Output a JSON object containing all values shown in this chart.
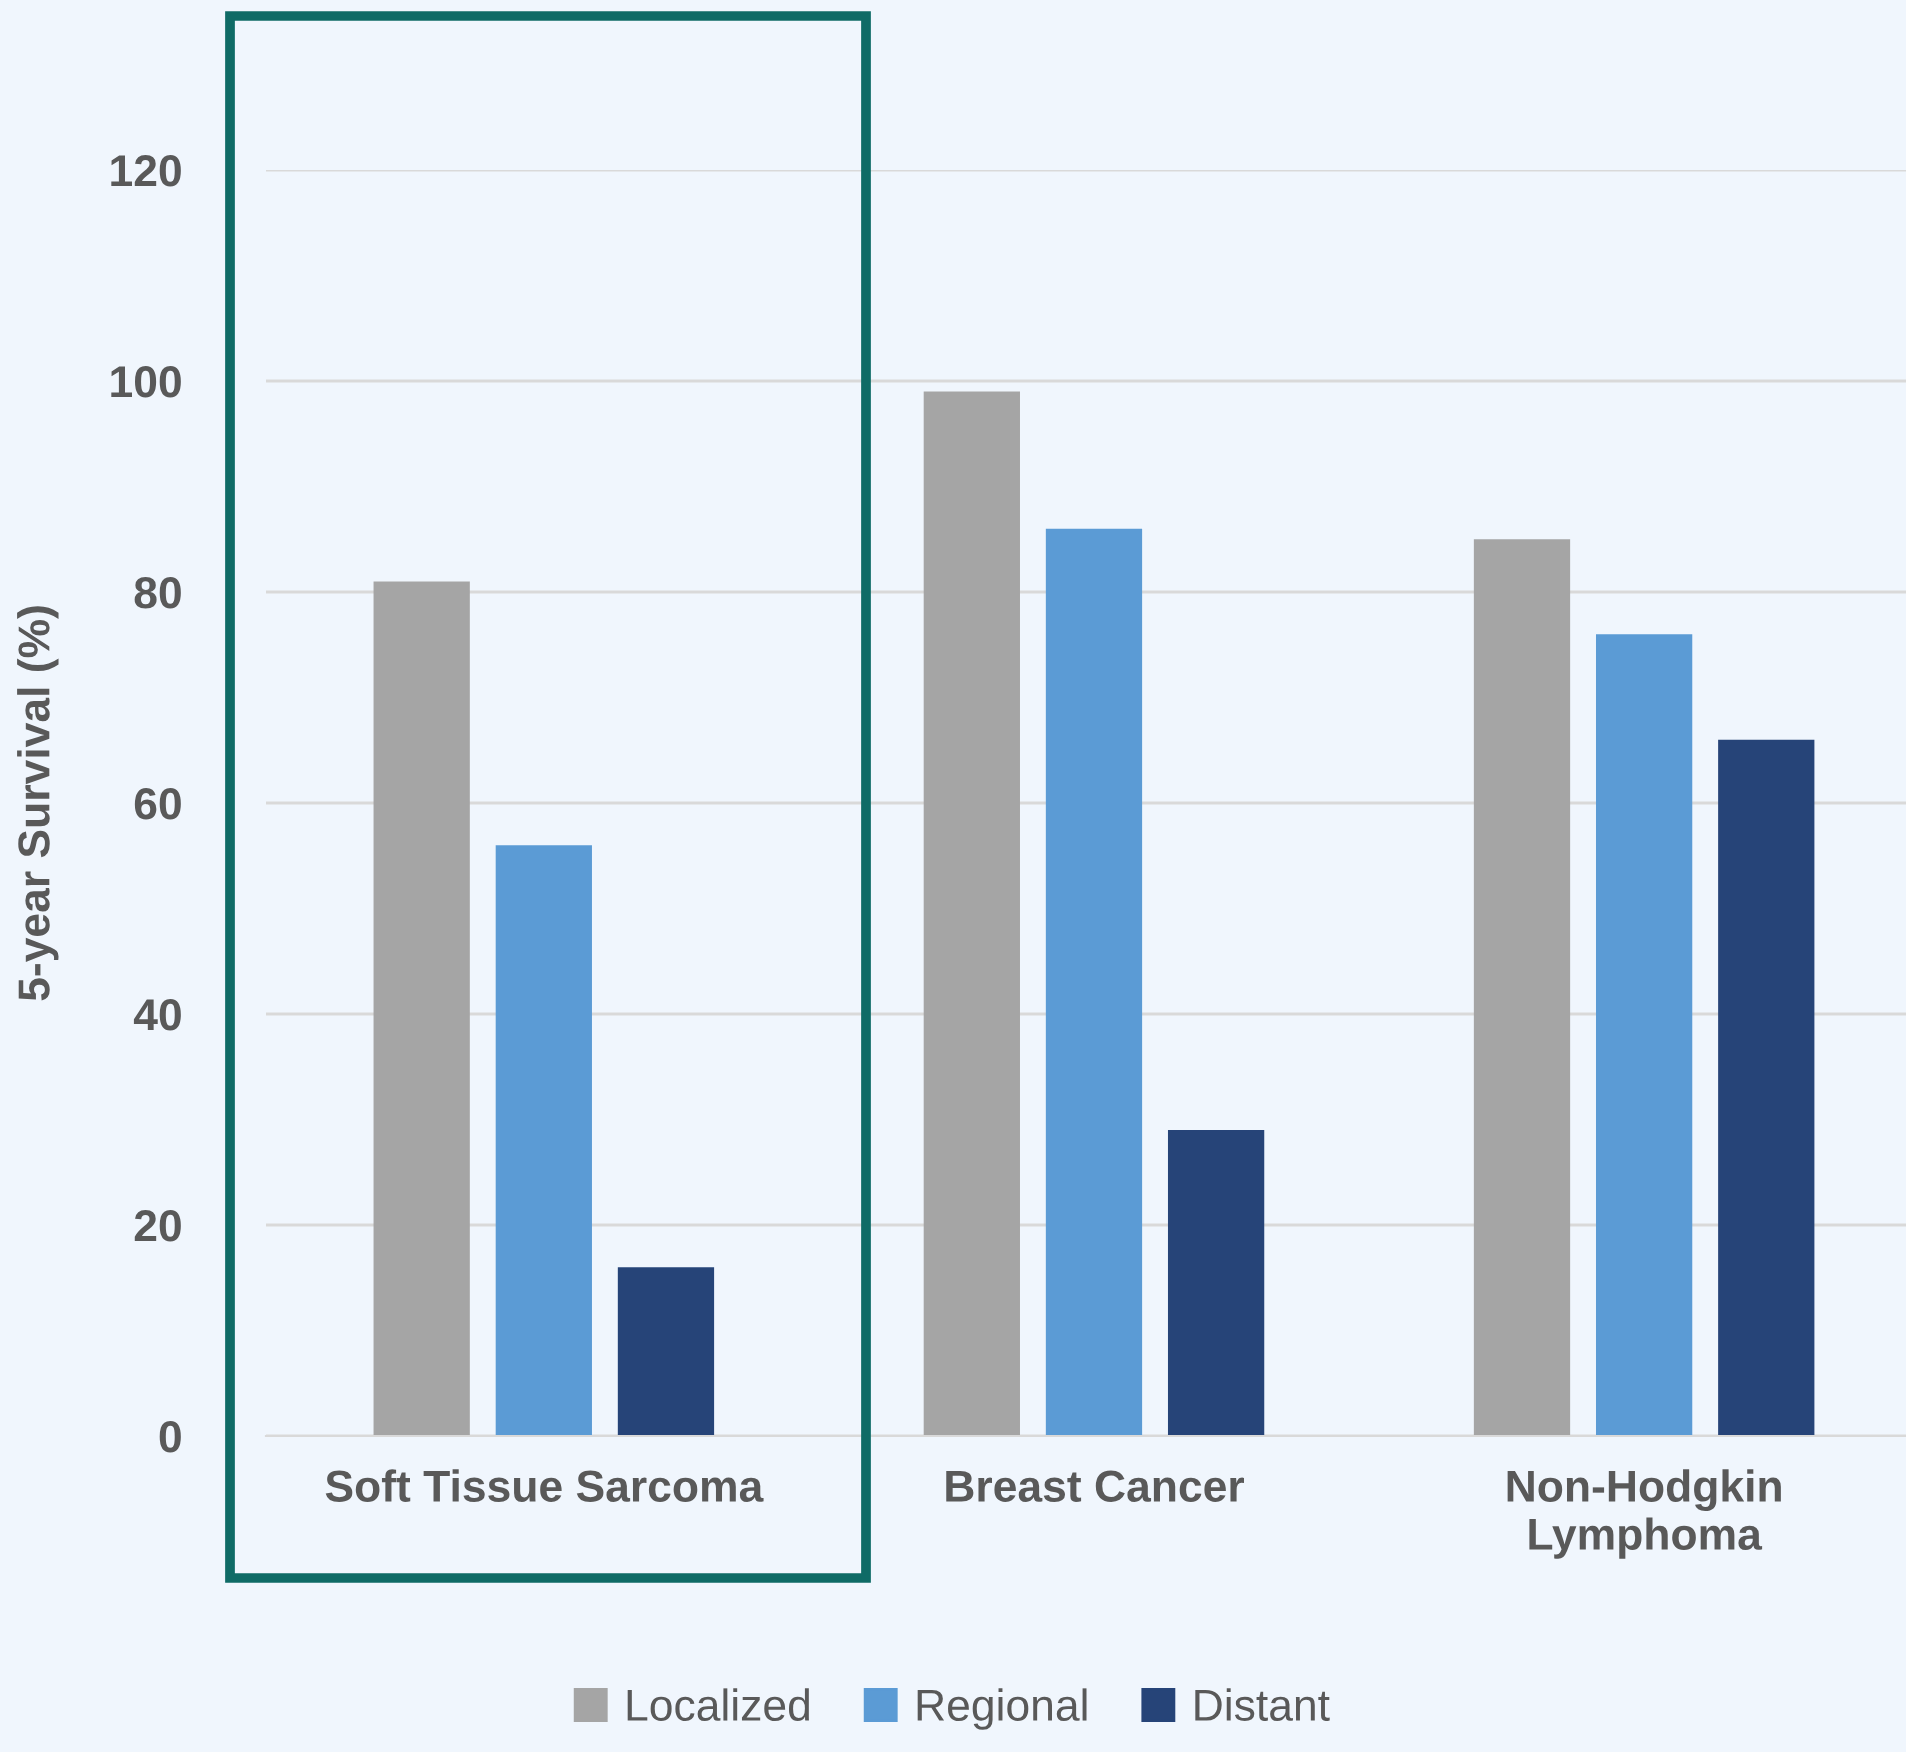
{
  "chart_data": {
    "type": "bar",
    "ylabel": "5-year Survival (%)",
    "categories": [
      "Soft Tissue Sarcoma",
      "Breast Cancer",
      "Non-Hodgkin\nLymphoma"
    ],
    "series": [
      {
        "name": "Localized",
        "color": "#a5a5a5",
        "values": [
          81,
          99,
          85
        ]
      },
      {
        "name": "Regional",
        "color": "#5b9bd5",
        "values": [
          56,
          86,
          76
        ]
      },
      {
        "name": "Distant",
        "color": "#264478",
        "values": [
          16,
          29,
          66
        ]
      }
    ],
    "ylim": [
      0,
      120
    ],
    "yticks": [
      0,
      20,
      40,
      60,
      80,
      100,
      120
    ],
    "grid": "y",
    "legend": "bottom"
  }
}
